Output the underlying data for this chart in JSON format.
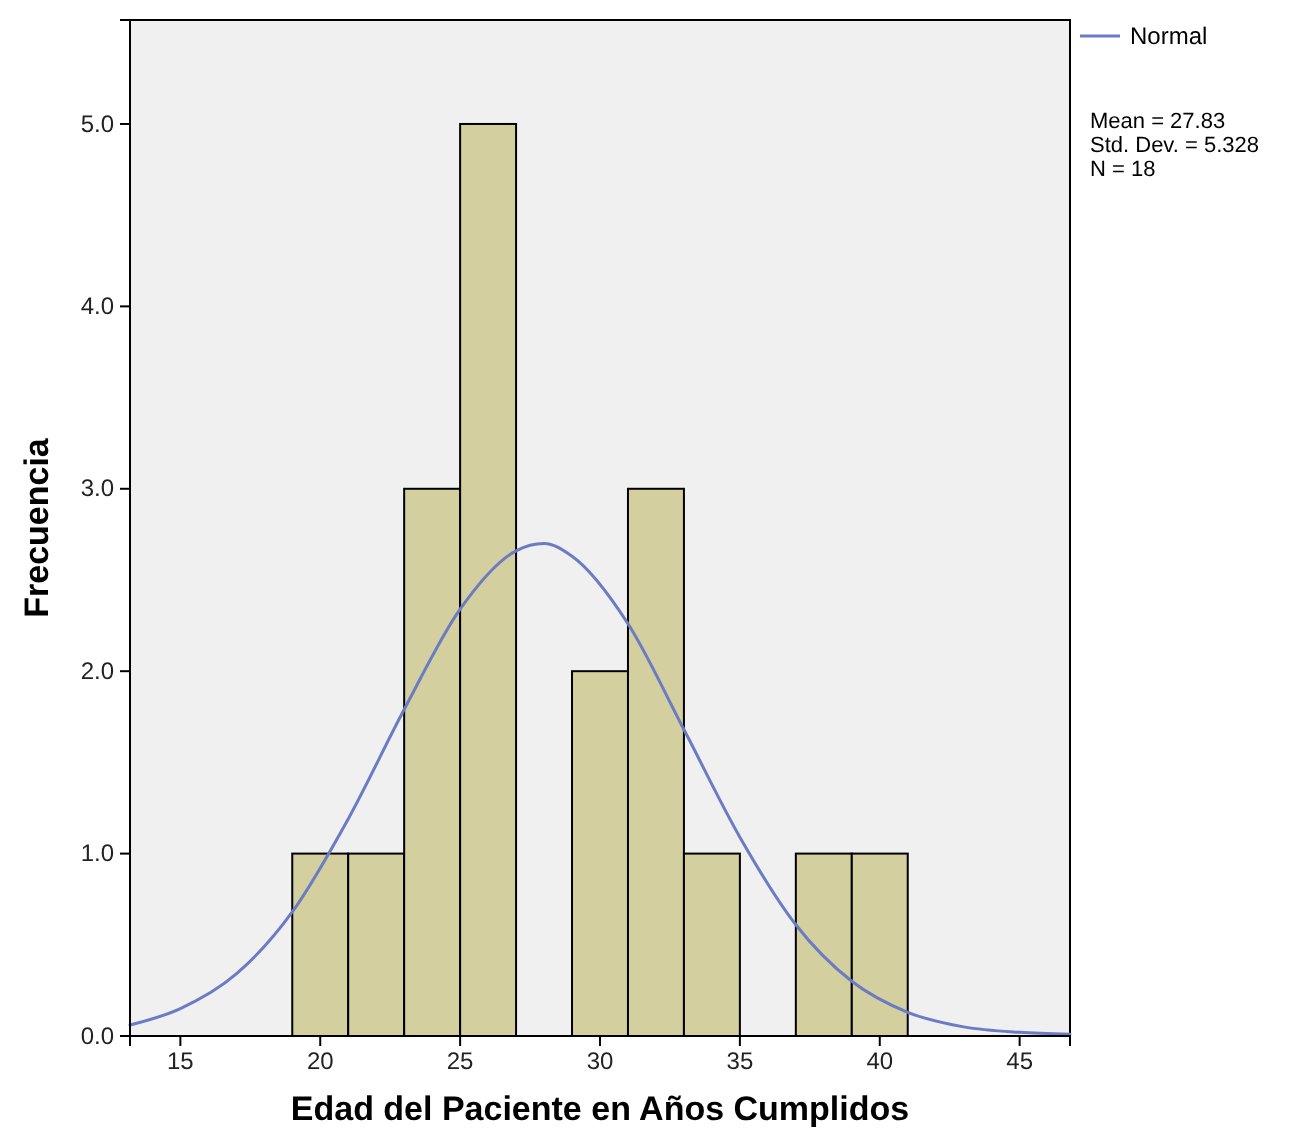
{
  "chart_data": {
    "type": "histogram",
    "xlabel": "Edad del Paciente en Años Cumplidos",
    "ylabel": "Frecuencia",
    "bins": [
      19,
      21,
      23,
      25,
      27,
      29,
      31,
      33,
      35,
      37,
      39,
      41
    ],
    "values": [
      1,
      1,
      3,
      5,
      0,
      2,
      3,
      1,
      0,
      1,
      1
    ],
    "color": "#d4cf9e",
    "series": [
      {
        "type": "line",
        "name": "Normal",
        "color": "#6b7bc4",
        "x": [
          13.2,
          15,
          17,
          19,
          21,
          23,
          25,
          27,
          28,
          29,
          31,
          33,
          35,
          37,
          39,
          41,
          43,
          45,
          46.8
        ],
        "values": [
          0.06,
          0.15,
          0.34,
          0.68,
          1.19,
          1.79,
          2.34,
          2.66,
          2.7,
          2.63,
          2.26,
          1.68,
          1.09,
          0.61,
          0.3,
          0.13,
          0.05,
          0.02,
          0.01
        ]
      }
    ],
    "xlim": [
      13.2,
      46.8
    ],
    "xticks": [
      15,
      20,
      25,
      30,
      35,
      40,
      45
    ],
    "ylim": [
      0,
      5.57
    ],
    "yticks": [
      {
        "value": 0,
        "label": "0.0"
      },
      {
        "value": 1,
        "label": "1.0"
      },
      {
        "value": 2,
        "label": "2.0"
      },
      {
        "value": 3,
        "label": "3.0"
      },
      {
        "value": 4,
        "label": "4.0"
      },
      {
        "value": 5,
        "label": "5.0"
      }
    ],
    "legend": "top right",
    "annotations": [
      "Mean = 27.83",
      "Std. Dev. = 5.328",
      "N = 18"
    ]
  }
}
